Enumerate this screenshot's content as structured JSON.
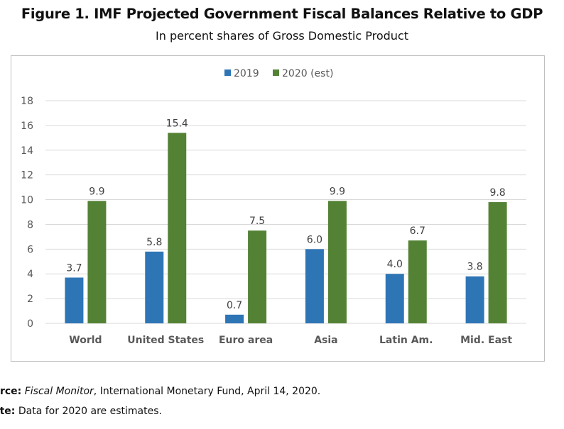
{
  "chart_data": {
    "type": "bar",
    "title": "Figure 1. IMF Projected Government Fiscal Balances Relative to GDP",
    "subtitle": "In percent shares of Gross Domestic Product",
    "categories": [
      "World",
      "United States",
      "Euro area",
      "Asia",
      "Latin Am.",
      "Mid. East"
    ],
    "series": [
      {
        "name": "2019",
        "color": "#2e75b6",
        "values": [
          3.7,
          5.8,
          0.7,
          6.0,
          4.0,
          3.8
        ]
      },
      {
        "name": "2020 (est)",
        "color": "#548235",
        "values": [
          9.9,
          15.4,
          7.5,
          9.9,
          6.7,
          9.8
        ]
      }
    ],
    "yticks": [
      0,
      2,
      4,
      6,
      8,
      10,
      12,
      14,
      16,
      18
    ],
    "ylim": [
      0,
      18
    ],
    "xlabel": "",
    "ylabel": "",
    "grid": true,
    "legend": "top-center"
  },
  "notes": {
    "source_label": "urce:",
    "source_italic": "Fiscal Monitor",
    "source_text": ", International Monetary Fund, April 14, 2020.",
    "note_label": "ote:",
    "note_text": "Data for 2020 are estimates."
  }
}
